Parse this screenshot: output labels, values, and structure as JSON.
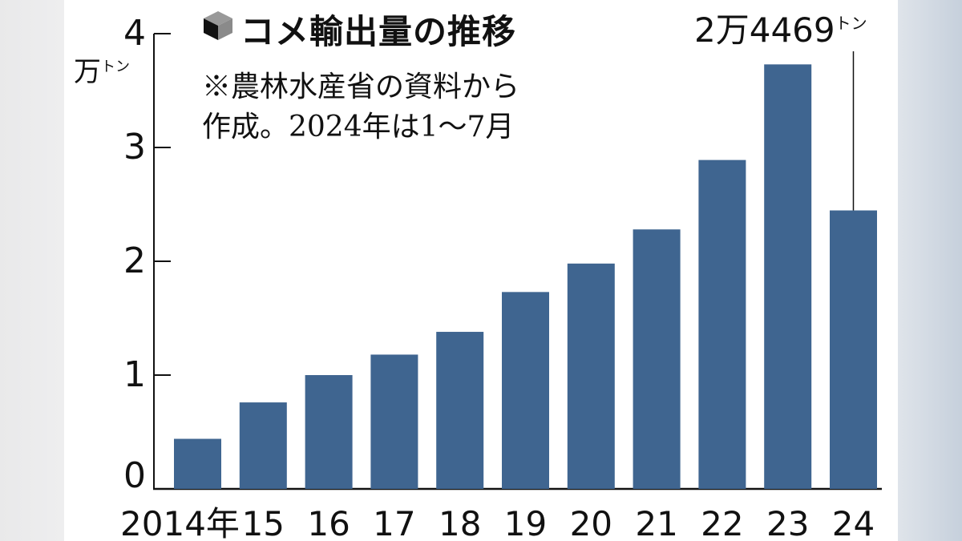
{
  "chart_data": {
    "type": "bar",
    "title": "コメ輸出量の推移",
    "note_lines": [
      "※農林水産省の資料から",
      "作成。2024年は1〜7月"
    ],
    "ylabel_main": "万",
    "ylabel_sub": "トン",
    "categories": [
      "2014年",
      "15",
      "16",
      "17",
      "18",
      "19",
      "20",
      "21",
      "22",
      "23",
      "24"
    ],
    "values": [
      0.44,
      0.76,
      1.0,
      1.18,
      1.38,
      1.73,
      1.98,
      2.28,
      2.89,
      3.73,
      2.4469
    ],
    "yticks": [
      "0",
      "1",
      "2",
      "3",
      "4"
    ],
    "ylim": [
      0,
      4
    ],
    "annotation": {
      "main": "2万4469",
      "sub": "トン",
      "category": "24"
    },
    "bar_color": "#3f6590",
    "grid": false,
    "legend": "none"
  }
}
